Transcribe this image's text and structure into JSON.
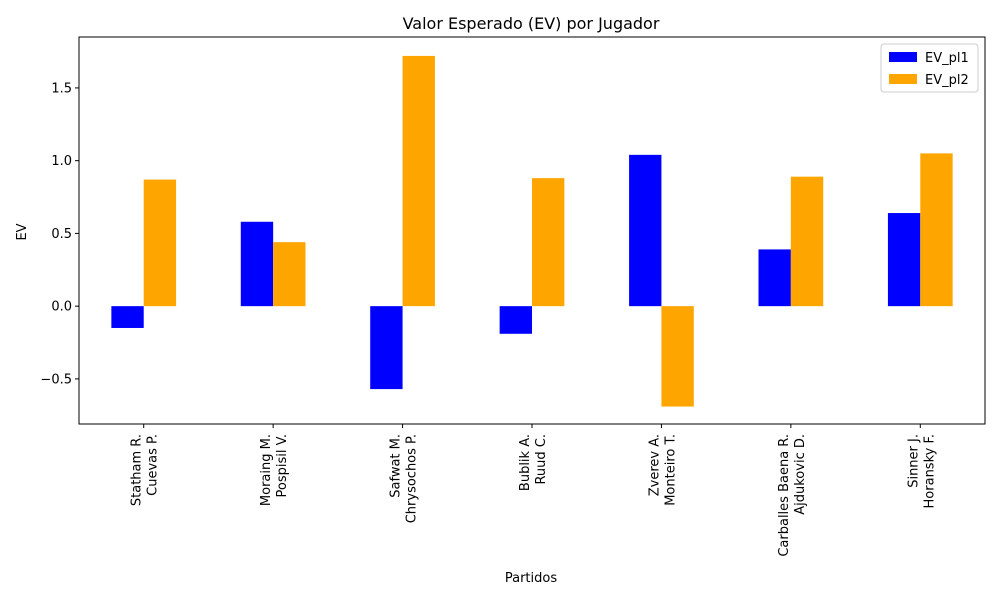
{
  "chart_data": {
    "type": "bar",
    "title": "Valor Esperado (EV) por Jugador",
    "xlabel": "Partidos",
    "ylabel": "EV",
    "categories": [
      [
        "Statham R.",
        "Cuevas P."
      ],
      [
        "Moraing M.",
        "Pospisil V."
      ],
      [
        "Safwat M.",
        "Chrysochos P."
      ],
      [
        "Bublik A.",
        "Ruud C."
      ],
      [
        "Zverev A.",
        "Monteiro T."
      ],
      [
        "Carballes Baena R.",
        "Ajdukovic D."
      ],
      [
        "Sinner J.",
        "Horansky F."
      ]
    ],
    "series": [
      {
        "name": "EV_pl1",
        "color": "#0000ff",
        "values": [
          -0.15,
          0.58,
          -0.57,
          -0.19,
          1.04,
          0.39,
          0.64
        ]
      },
      {
        "name": "EV_pl2",
        "color": "#ffa500",
        "values": [
          0.87,
          0.44,
          1.72,
          0.88,
          -0.69,
          0.89,
          1.05
        ]
      }
    ],
    "ylim": [
      -0.81,
      1.85
    ],
    "yticks": [
      -0.5,
      0.0,
      0.5,
      1.0,
      1.5
    ],
    "ytick_labels": [
      "−0.5",
      "0.0",
      "0.5",
      "1.0",
      "1.5"
    ],
    "legend_position": "top-right",
    "grid": false
  }
}
